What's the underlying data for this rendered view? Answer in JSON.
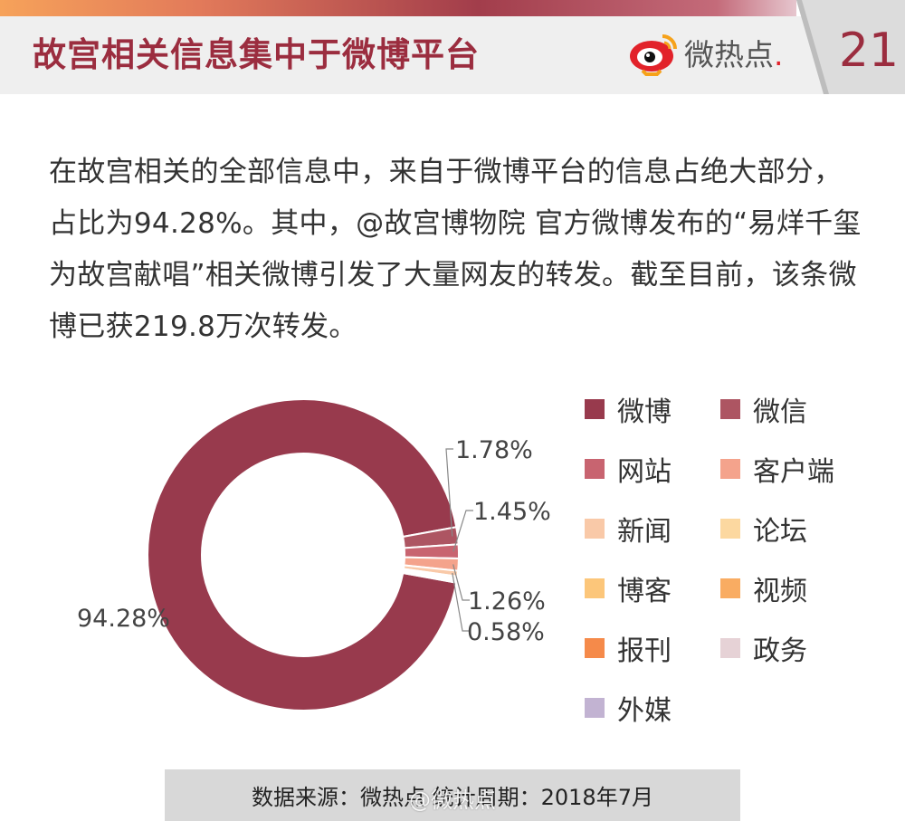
{
  "header": {
    "title": "故宫相关信息集中于微博平台",
    "brand": {
      "name": "微热点",
      "icon": "weibo-eye-logo-icon"
    },
    "page_number": "21"
  },
  "summary": "在故宫相关的全部信息中，来自于微博平台的信息占绝大部分，占比为94.28%。其中，@故宫博物院 官方微博发布的“易烊千玺为故宫献唱”相关微博引发了大量网友的转发。截至目前，该条微博已获219.8万次转发。",
  "chart_data": {
    "type": "pie",
    "title": "",
    "donut": true,
    "categories": [
      "微博",
      "微信",
      "网站",
      "客户端",
      "新闻",
      "论坛",
      "博客",
      "视频",
      "报刊",
      "政务",
      "外媒"
    ],
    "values": [
      94.28,
      1.78,
      1.45,
      1.26,
      0.58,
      0.2,
      0.15,
      0.12,
      0.08,
      0.06,
      0.04
    ],
    "colors": [
      "#983a4d",
      "#ad5562",
      "#c86470",
      "#f4a38c",
      "#f9c9a8",
      "#fcd8a0",
      "#fcc67a",
      "#f9ac62",
      "#f58a4a",
      "#e6d2d6",
      "#c2b3d2"
    ],
    "labels": [
      {
        "text": "94.28%",
        "slice": "微博"
      },
      {
        "text": "1.78%",
        "slice": "微信"
      },
      {
        "text": "1.45%",
        "slice": "网站"
      },
      {
        "text": "1.26%",
        "slice": "客户端"
      },
      {
        "text": "0.58%",
        "slice": "新闻"
      }
    ],
    "legend": {
      "position": "right"
    }
  },
  "footer": {
    "source": "数据来源：微热点   统计周期：2018年7月",
    "watermark": "@微热点"
  }
}
